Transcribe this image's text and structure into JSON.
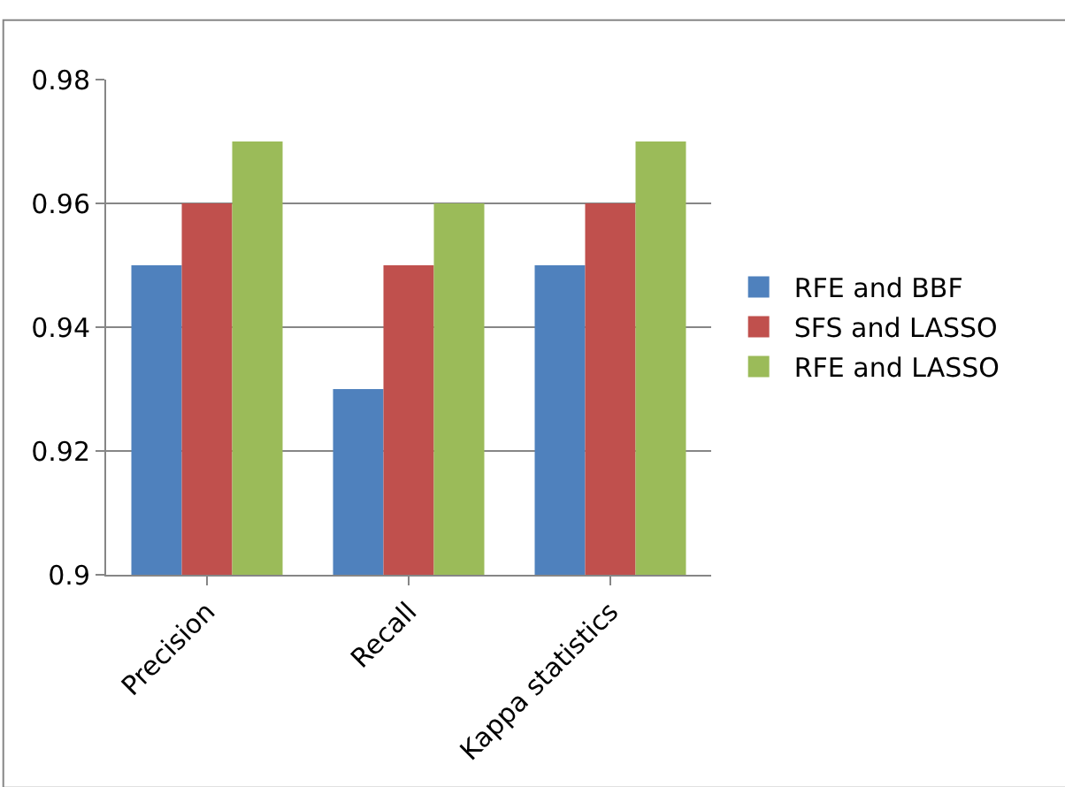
{
  "chart_data": {
    "type": "bar",
    "categories": [
      "Precision",
      "Recall",
      "Kappa statistics"
    ],
    "series": [
      {
        "name": "RFE and BBF",
        "color": "#4f81bd",
        "values": [
          0.95,
          0.93,
          0.95
        ]
      },
      {
        "name": "SFS and LASSO",
        "color": "#c0504d",
        "values": [
          0.96,
          0.95,
          0.96
        ]
      },
      {
        "name": "RFE and LASSO",
        "color": "#9bbb59",
        "values": [
          0.97,
          0.96,
          0.97
        ]
      }
    ],
    "ylim": [
      0.9,
      0.98
    ],
    "yticks": [
      0.9,
      0.92,
      0.94,
      0.96,
      0.98
    ],
    "grid": "y",
    "legend": "right"
  }
}
